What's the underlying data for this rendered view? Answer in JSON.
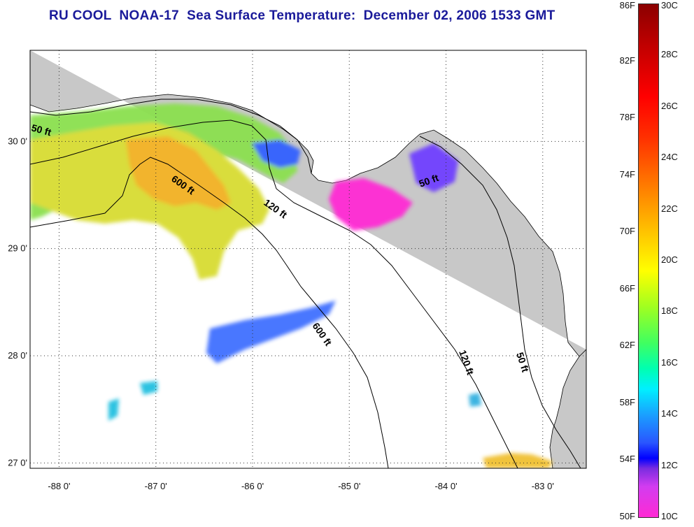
{
  "title": "RU COOL  NOAA-17  Sea Surface Temperature:  December 02, 2006 1533 GMT",
  "map": {
    "lon_range": [
      -88.3,
      -82.55
    ],
    "lat_range": [
      26.95,
      30.85
    ],
    "lon_ticks": [
      {
        "value": -88,
        "label": "-88 0'"
      },
      {
        "value": -87,
        "label": "-87 0'"
      },
      {
        "value": -86,
        "label": "-86 0'"
      },
      {
        "value": -85,
        "label": "-85 0'"
      },
      {
        "value": -84,
        "label": "-84 0'"
      },
      {
        "value": -83,
        "label": "-83 0'"
      }
    ],
    "lat_ticks": [
      {
        "value": 30,
        "label": "30 0'"
      },
      {
        "value": 29,
        "label": "29 0'"
      },
      {
        "value": 28,
        "label": "28 0'"
      },
      {
        "value": 27,
        "label": "27 0'"
      }
    ],
    "grid": "dotted",
    "land_color": "#c8c8c8",
    "contour_labels": [
      "50 ft",
      "600 ft",
      "120 ft",
      "50 ft",
      "600 ft",
      "120 ft",
      "50 ft"
    ]
  },
  "colorbar": {
    "fahrenheit_labels": [
      "86F",
      "82F",
      "78F",
      "74F",
      "70F",
      "66F",
      "62F",
      "58F",
      "54F",
      "50F"
    ],
    "celsius_labels": [
      "30C",
      "28C",
      "26C",
      "24C",
      "22C",
      "20C",
      "18C",
      "16C",
      "14C",
      "12C",
      "10C"
    ],
    "range_c": [
      10,
      30
    ],
    "colors_low_to_high": [
      "#ff2ad4",
      "#7a2ce0",
      "#0000ff",
      "#00f0ff",
      "#40ff60",
      "#ffff00",
      "#ffa000",
      "#ff0000",
      "#8b0000"
    ]
  }
}
